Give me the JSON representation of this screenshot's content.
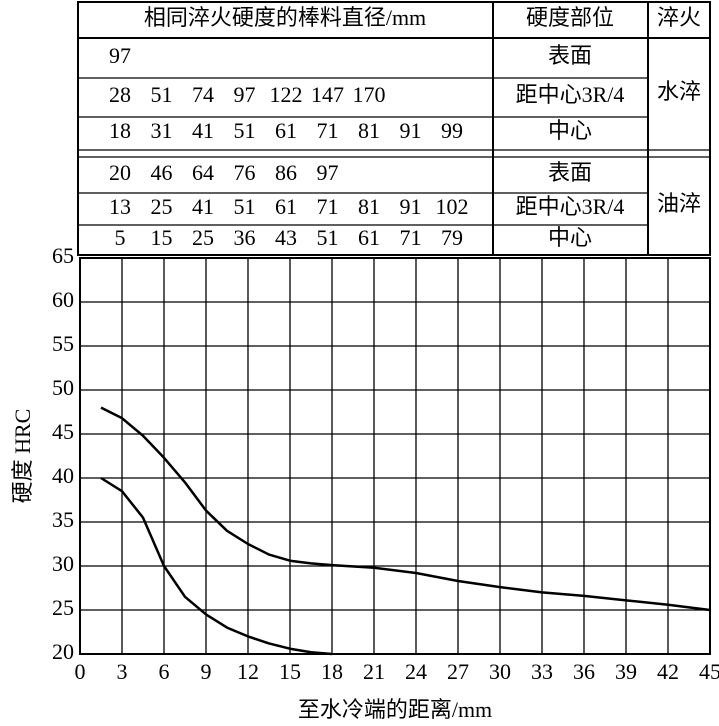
{
  "table": {
    "header": [
      "相同淬火硬度的棒料直径/mm",
      "硬度部位",
      "淬火"
    ],
    "groups": [
      {
        "quench": "水淬",
        "rows": [
          {
            "position": "表面",
            "diameters": [
              97
            ]
          },
          {
            "position": "距中心3R/4",
            "diameters": [
              28,
              51,
              74,
              97,
              122,
              147,
              170
            ]
          },
          {
            "position": "中心",
            "diameters": [
              18,
              31,
              41,
              51,
              61,
              71,
              81,
              91,
              99
            ]
          }
        ]
      },
      {
        "quench": "油淬",
        "rows": [
          {
            "position": "表面",
            "diameters": [
              20,
              46,
              64,
              76,
              86,
              97
            ]
          },
          {
            "position": "距中心3R/4",
            "diameters": [
              13,
              25,
              41,
              51,
              61,
              71,
              81,
              91,
              102
            ]
          },
          {
            "position": "中心",
            "diameters": [
              5,
              15,
              25,
              36,
              43,
              51,
              61,
              71,
              79
            ]
          }
        ]
      }
    ]
  },
  "chart_data": {
    "type": "line",
    "x_label": "至水冷端的距离/mm",
    "y_label": "硬度 HRC",
    "xlim": [
      0,
      45
    ],
    "ylim": [
      20,
      65
    ],
    "xticks": [
      0,
      3,
      6,
      9,
      12,
      15,
      18,
      21,
      24,
      27,
      30,
      33,
      36,
      39,
      42,
      45
    ],
    "yticks": [
      20,
      25,
      30,
      35,
      40,
      45,
      50,
      55,
      60,
      65
    ],
    "grid": true,
    "x": [
      1.5,
      3,
      4.5,
      6,
      7.5,
      9,
      10.5,
      12,
      13.5,
      15,
      16.5,
      18,
      21,
      24,
      27,
      30,
      33,
      36,
      39,
      42,
      45
    ],
    "series": [
      {
        "color": "#000000",
        "values": [
          48,
          46.8,
          44.8,
          42.3,
          39.5,
          36.3,
          34,
          32.5,
          31.3,
          30.6,
          30.3,
          30.1,
          29.8,
          29.2,
          28.3,
          27.6,
          27,
          26.6,
          26.1,
          25.6,
          25
        ]
      },
      {
        "color": "#000000",
        "values": [
          40,
          38.5,
          35.5,
          30,
          26.5,
          24.5,
          23,
          22,
          21.2,
          20.6,
          20.2,
          20,
          null,
          null,
          null,
          null,
          null,
          null,
          null,
          null,
          null
        ]
      }
    ]
  }
}
